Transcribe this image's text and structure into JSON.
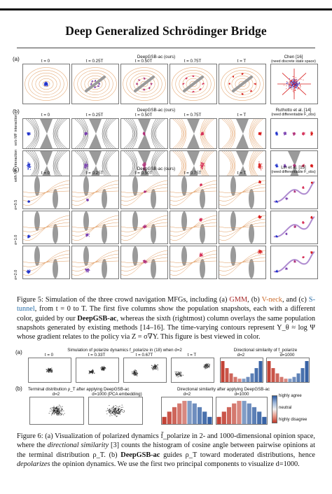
{
  "paper": {
    "title": "Deep Generalized Schrödinger Bridge"
  },
  "figure5": {
    "panel_a": {
      "label": "(a)",
      "method_title": "DeepGSB-ac (ours)",
      "time_labels": [
        "t = 0",
        "t = 0.25T",
        "t = 0.50T",
        "t = 0.75T",
        "t = T"
      ],
      "ref_title": "Chen [16]",
      "ref_subtitle": "(need discrete state space)"
    },
    "panel_b": {
      "label": "(b)",
      "method_title": "DeepGSB-ac (ours)",
      "time_labels": [
        "t = 0",
        "t = 0.25T",
        "t = 0.50T",
        "t = 0.75T",
        "t = T"
      ],
      "row_labels": [
        "w/o MF interaction",
        "with MF interaction"
      ],
      "ref_title": "Ruthotto et al. [14]",
      "ref_subtitle": "(need differentiable F_obs)"
    },
    "panel_c": {
      "label": "(c)",
      "method_title": "DeepGSB-ac (ours)",
      "time_labels": [
        "t = 0",
        "t = 0.25T",
        "t = 0.50T",
        "t = 0.75T",
        "t = T"
      ],
      "row_labels": [
        "σ=0.5",
        "σ=1.0",
        "σ=2.0"
      ],
      "ref_title": "Lin et al. [15]",
      "ref_subtitle": "(need differentiable F_obs)"
    }
  },
  "caption5": {
    "p1": "Figure 5: Simulation of the three crowd navigation MFGs, including (a) ",
    "gmm": "GMM",
    "p2": ", (b) ",
    "vneck": "V-neck",
    "p3": ", and (c) ",
    "stunnel": "S-tunnel",
    "p4": ", from t = 0 to T. The first five columns show the population snapshots, each with a different color, guided by our ",
    "bold1": "DeepGSB-ac",
    "p5": ", whereas the sixth (rightmost) column overlays the same population snapshots generated by existing methods [14–16]. The time-varying contours represent Y_θ ≈ log Ψ whose gradient relates to the policy via Z = σ∇Y. This figure is best viewed in color."
  },
  "figure6": {
    "panel_a": {
      "label": "(a)",
      "title": "Simulation of polarize dynamics f_polarize in (18) when d=2",
      "time_labels": [
        "t = 0",
        "t = 0.33T",
        "t = 0.67T",
        "t = T"
      ],
      "dir_title": "Directional similarity of f_polarize",
      "dir_labels": [
        "d=2",
        "d=1000"
      ]
    },
    "panel_b": {
      "label": "(b)",
      "title": "Terminal distribution ρ_T after applying DeepGSB-ac",
      "sub_labels": [
        "d=2",
        "d=1000 (PCA embedding)"
      ],
      "dir_title": "Directional similarity after applying DeepGSB-ac",
      "dir_labels": [
        "d=2",
        "d=1000"
      ],
      "legend": [
        "highly agree",
        "neutral",
        "highly disagree"
      ]
    }
  },
  "caption6": {
    "p1": "Figure 6: (a) Visualization of polarized dynamics f̄_polarize in 2- and 1000-dimensional opinion space, where the ",
    "it1": "directional similarity",
    "p2": " [3] counts the histogram of cosine angle between pairwise opinions at the terminal distribution ρ_T. (b) ",
    "bold1": "DeepGSB-ac",
    "p3": " guides ρ_T toward moderated distributions, hence ",
    "it2": "depolarizes",
    "p4": " the opinion dynamics. We use the first two principal components to visualize d=1000."
  },
  "colors": {
    "t0": "#2233cc",
    "t1": "#7a3fb0",
    "t2": "#b0307a",
    "t3": "#d6305a",
    "t4": "#d81b1b",
    "contour": "#e0985a",
    "obstacle": "#9a9a9a",
    "hist_red": "#c0392b",
    "hist_blue": "#2c5aa0"
  }
}
